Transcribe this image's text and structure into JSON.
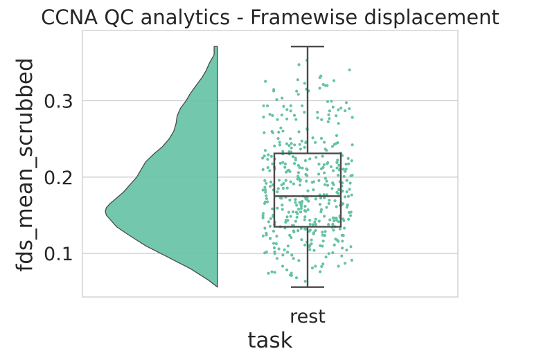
{
  "chart_data": {
    "type": "raincloud",
    "title": "CCNA QC analytics - Framewise displacement",
    "xlabel": "task",
    "ylabel": "fds_mean_scrubbed",
    "categories": [
      "rest"
    ],
    "yticks": [
      0.1,
      0.2,
      0.3
    ],
    "ytick_labels": [
      "0.1",
      "0.2",
      "0.3"
    ],
    "ylim": [
      0.043,
      0.392
    ],
    "grid": "y",
    "legend": "none",
    "color": "#66c2a5",
    "density": {
      "y": [
        0.056,
        0.065,
        0.08,
        0.095,
        0.11,
        0.125,
        0.135,
        0.145,
        0.15,
        0.155,
        0.16,
        0.165,
        0.17,
        0.175,
        0.18,
        0.19,
        0.2,
        0.21,
        0.22,
        0.23,
        0.24,
        0.25,
        0.26,
        0.27,
        0.28,
        0.29,
        0.3,
        0.31,
        0.32,
        0.33,
        0.34,
        0.35,
        0.36,
        0.371
      ],
      "width": [
        0.0,
        0.08,
        0.24,
        0.44,
        0.64,
        0.8,
        0.9,
        0.96,
        0.99,
        1.0,
        0.99,
        0.96,
        0.92,
        0.88,
        0.84,
        0.78,
        0.72,
        0.68,
        0.64,
        0.57,
        0.49,
        0.43,
        0.39,
        0.37,
        0.36,
        0.33,
        0.28,
        0.24,
        0.19,
        0.14,
        0.1,
        0.07,
        0.03,
        0.03
      ]
    },
    "box": {
      "min": 0.056,
      "q1": 0.135,
      "median": 0.175,
      "q3": 0.231,
      "max": 0.371
    },
    "points_count": 420
  }
}
